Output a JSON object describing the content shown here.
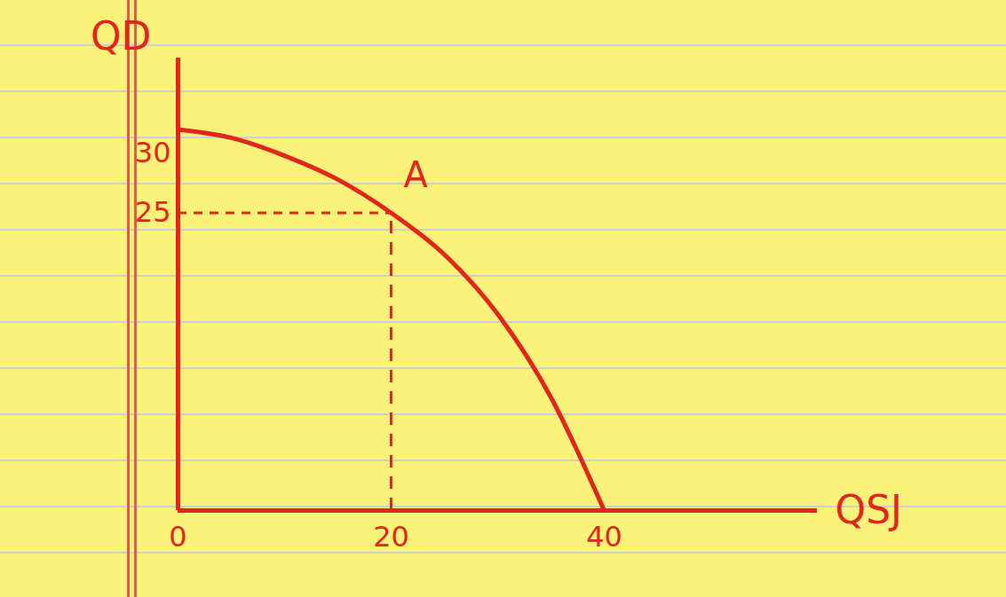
{
  "chart_data": {
    "type": "line",
    "x_label": "QSJ",
    "y_label": "QD",
    "x": [
      0,
      5,
      10,
      15,
      20,
      25,
      30,
      35,
      40
    ],
    "values": [
      32,
      31.3,
      29.8,
      27.8,
      25,
      21.5,
      16.5,
      9.5,
      0
    ],
    "color": "#e3261c",
    "xlim": [
      0,
      60
    ],
    "ylim": [
      0,
      38
    ],
    "xticks": [
      0,
      20,
      40
    ],
    "yticks": [
      25,
      30
    ],
    "grid": false,
    "annotations": [
      {
        "text": "A",
        "x": 20,
        "y": 25
      }
    ]
  }
}
